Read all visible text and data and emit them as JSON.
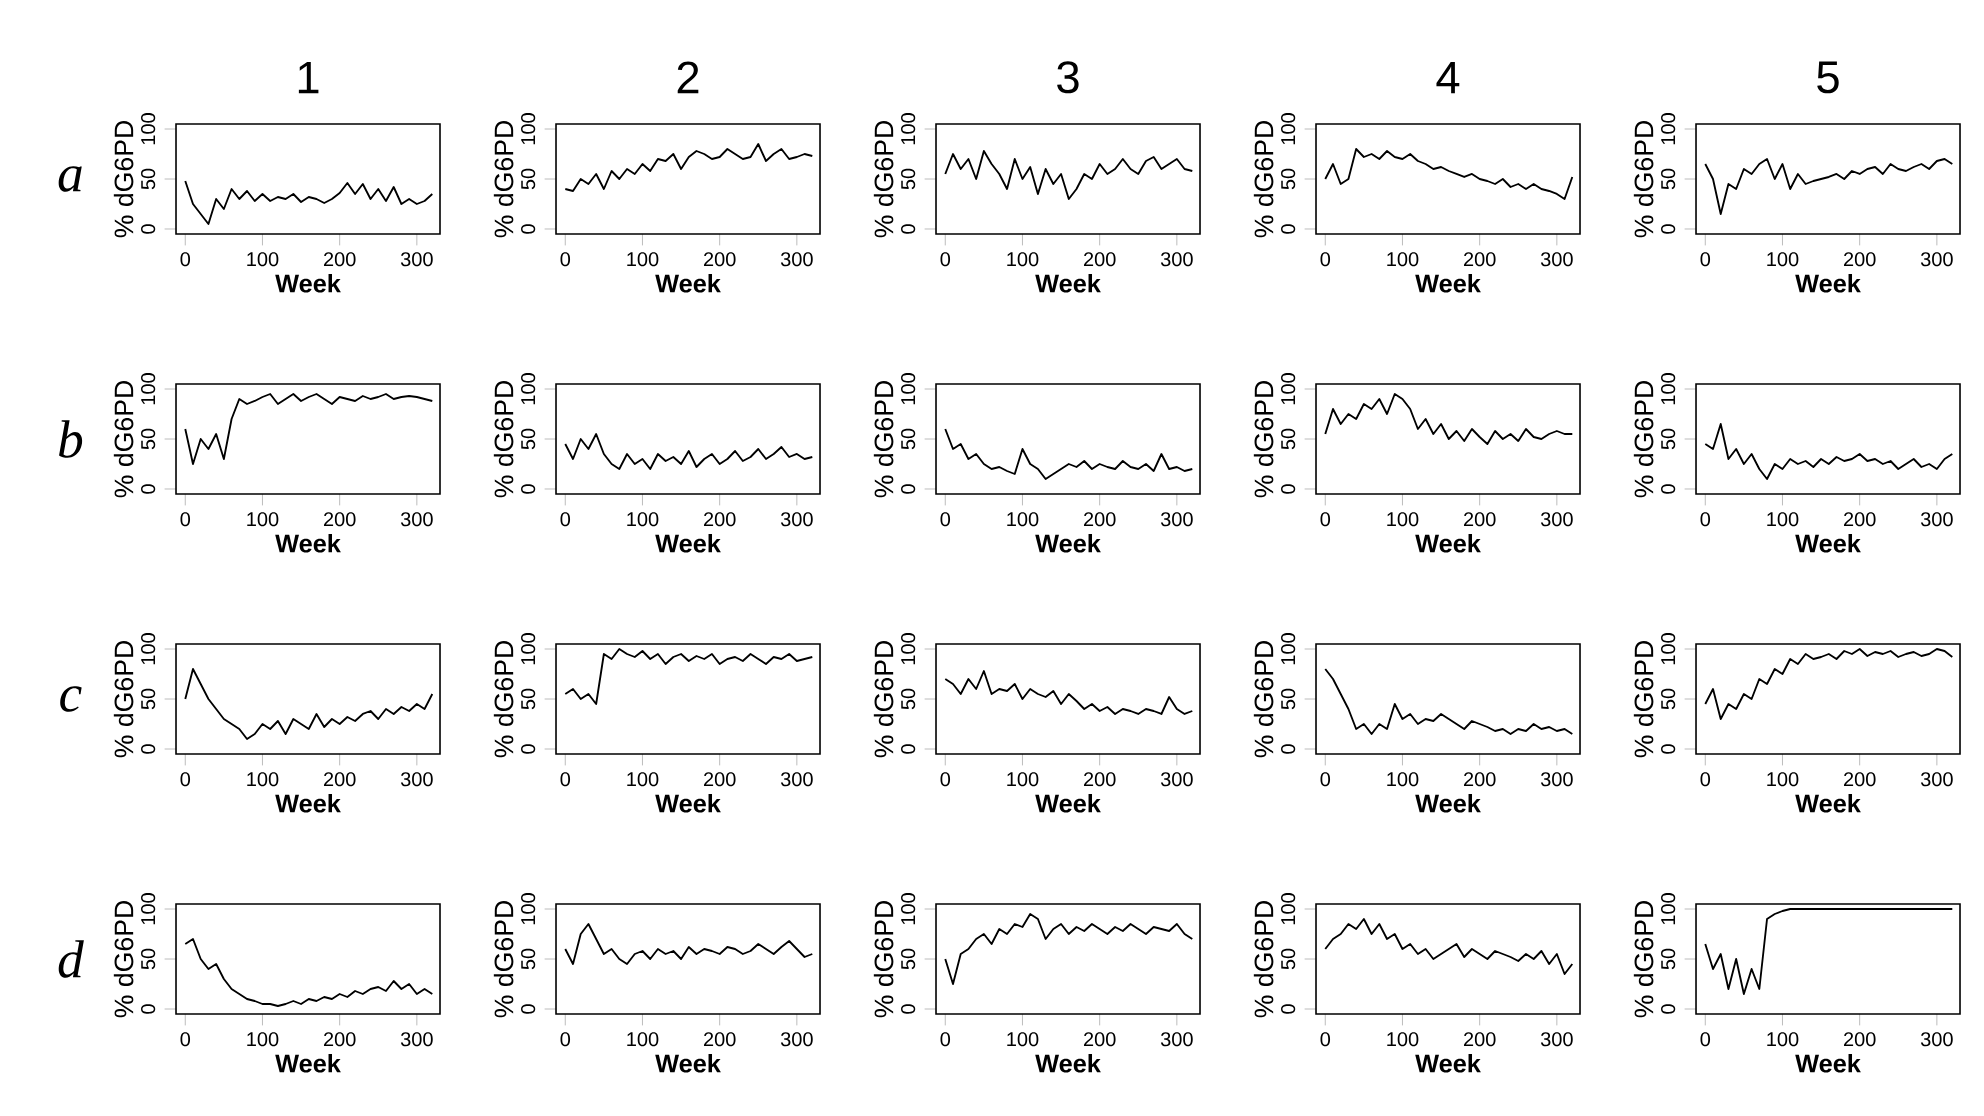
{
  "chart_data": [
    {
      "type": "line",
      "title": "1",
      "annotations": [
        "a"
      ],
      "xlabel": "Week",
      "ylabel": "% dG6PD",
      "xlim": [
        -12,
        330
      ],
      "ylim": [
        -5,
        105
      ],
      "xticks": [
        0,
        100,
        200,
        300
      ],
      "yticks": [
        0,
        50,
        100
      ],
      "color": "#000000",
      "x": [
        0,
        10,
        20,
        30,
        40,
        50,
        60,
        70,
        80,
        90,
        100,
        110,
        120,
        130,
        140,
        150,
        160,
        170,
        180,
        190,
        200,
        210,
        220,
        230,
        240,
        250,
        260,
        270,
        280,
        290,
        300,
        310,
        320
      ],
      "values": [
        48,
        25,
        15,
        5,
        30,
        20,
        40,
        30,
        38,
        28,
        35,
        28,
        32,
        30,
        35,
        27,
        32,
        30,
        26,
        30,
        36,
        46,
        35,
        45,
        30,
        40,
        28,
        42,
        25,
        30,
        25,
        28,
        35
      ]
    },
    {
      "type": "line",
      "title": "2",
      "xlabel": "Week",
      "ylabel": "% dG6PD",
      "xlim": [
        -12,
        330
      ],
      "ylim": [
        -5,
        105
      ],
      "xticks": [
        0,
        100,
        200,
        300
      ],
      "yticks": [
        0,
        50,
        100
      ],
      "color": "#000000",
      "x": [
        0,
        10,
        20,
        30,
        40,
        50,
        60,
        70,
        80,
        90,
        100,
        110,
        120,
        130,
        140,
        150,
        160,
        170,
        180,
        190,
        200,
        210,
        220,
        230,
        240,
        250,
        260,
        270,
        280,
        290,
        300,
        310,
        320
      ],
      "values": [
        40,
        38,
        50,
        45,
        55,
        40,
        58,
        50,
        60,
        55,
        65,
        58,
        70,
        68,
        75,
        60,
        72,
        78,
        75,
        70,
        72,
        80,
        75,
        70,
        72,
        85,
        68,
        75,
        80,
        70,
        72,
        75,
        73
      ]
    },
    {
      "type": "line",
      "title": "3",
      "xlabel": "Week",
      "ylabel": "% dG6PD",
      "xlim": [
        -12,
        330
      ],
      "ylim": [
        -5,
        105
      ],
      "xticks": [
        0,
        100,
        200,
        300
      ],
      "yticks": [
        0,
        50,
        100
      ],
      "color": "#000000",
      "x": [
        0,
        10,
        20,
        30,
        40,
        50,
        60,
        70,
        80,
        90,
        100,
        110,
        120,
        130,
        140,
        150,
        160,
        170,
        180,
        190,
        200,
        210,
        220,
        230,
        240,
        250,
        260,
        270,
        280,
        290,
        300,
        310,
        320
      ],
      "values": [
        55,
        75,
        60,
        70,
        50,
        78,
        65,
        55,
        40,
        70,
        50,
        62,
        35,
        60,
        45,
        55,
        30,
        40,
        55,
        50,
        65,
        55,
        60,
        70,
        60,
        55,
        68,
        72,
        60,
        65,
        70,
        60,
        58
      ]
    },
    {
      "type": "line",
      "title": "4",
      "xlabel": "Week",
      "ylabel": "% dG6PD",
      "xlim": [
        -12,
        330
      ],
      "ylim": [
        -5,
        105
      ],
      "xticks": [
        0,
        100,
        200,
        300
      ],
      "yticks": [
        0,
        50,
        100
      ],
      "color": "#000000",
      "x": [
        0,
        10,
        20,
        30,
        40,
        50,
        60,
        70,
        80,
        90,
        100,
        110,
        120,
        130,
        140,
        150,
        160,
        170,
        180,
        190,
        200,
        210,
        220,
        230,
        240,
        250,
        260,
        270,
        280,
        290,
        300,
        310,
        320
      ],
      "values": [
        50,
        65,
        45,
        50,
        80,
        72,
        75,
        70,
        78,
        72,
        70,
        75,
        68,
        65,
        60,
        62,
        58,
        55,
        52,
        55,
        50,
        48,
        45,
        50,
        42,
        45,
        40,
        45,
        40,
        38,
        35,
        30,
        52
      ]
    },
    {
      "type": "line",
      "title": "5",
      "xlabel": "Week",
      "ylabel": "% dG6PD",
      "xlim": [
        -12,
        330
      ],
      "ylim": [
        -5,
        105
      ],
      "xticks": [
        0,
        100,
        200,
        300
      ],
      "yticks": [
        0,
        50,
        100
      ],
      "color": "#000000",
      "x": [
        0,
        10,
        20,
        30,
        40,
        50,
        60,
        70,
        80,
        90,
        100,
        110,
        120,
        130,
        140,
        150,
        160,
        170,
        180,
        190,
        200,
        210,
        220,
        230,
        240,
        250,
        260,
        270,
        280,
        290,
        300,
        310,
        320
      ],
      "values": [
        65,
        50,
        15,
        45,
        40,
        60,
        55,
        65,
        70,
        50,
        65,
        40,
        55,
        45,
        48,
        50,
        52,
        55,
        50,
        58,
        55,
        60,
        62,
        55,
        65,
        60,
        58,
        62,
        65,
        60,
        68,
        70,
        65
      ]
    },
    {
      "type": "line",
      "annotations": [
        "b"
      ],
      "xlabel": "Week",
      "ylabel": "% dG6PD",
      "xlim": [
        -12,
        330
      ],
      "ylim": [
        -5,
        105
      ],
      "xticks": [
        0,
        100,
        200,
        300
      ],
      "yticks": [
        0,
        50,
        100
      ],
      "color": "#000000",
      "x": [
        0,
        10,
        20,
        30,
        40,
        50,
        60,
        70,
        80,
        90,
        100,
        110,
        120,
        130,
        140,
        150,
        160,
        170,
        180,
        190,
        200,
        210,
        220,
        230,
        240,
        250,
        260,
        270,
        280,
        290,
        300,
        310,
        320
      ],
      "values": [
        60,
        25,
        50,
        40,
        55,
        30,
        70,
        90,
        85,
        88,
        92,
        95,
        85,
        90,
        95,
        88,
        92,
        95,
        90,
        85,
        92,
        90,
        88,
        93,
        90,
        92,
        95,
        90,
        92,
        93,
        92,
        90,
        88
      ]
    },
    {
      "type": "line",
      "xlabel": "Week",
      "ylabel": "% dG6PD",
      "xlim": [
        -12,
        330
      ],
      "ylim": [
        -5,
        105
      ],
      "xticks": [
        0,
        100,
        200,
        300
      ],
      "yticks": [
        0,
        50,
        100
      ],
      "color": "#000000",
      "x": [
        0,
        10,
        20,
        30,
        40,
        50,
        60,
        70,
        80,
        90,
        100,
        110,
        120,
        130,
        140,
        150,
        160,
        170,
        180,
        190,
        200,
        210,
        220,
        230,
        240,
        250,
        260,
        270,
        280,
        290,
        300,
        310,
        320
      ],
      "values": [
        45,
        30,
        50,
        40,
        55,
        35,
        25,
        20,
        35,
        25,
        30,
        20,
        35,
        28,
        32,
        25,
        38,
        22,
        30,
        35,
        25,
        30,
        38,
        28,
        32,
        40,
        30,
        35,
        42,
        32,
        35,
        30,
        32
      ]
    },
    {
      "type": "line",
      "xlabel": "Week",
      "ylabel": "% dG6PD",
      "xlim": [
        -12,
        330
      ],
      "ylim": [
        -5,
        105
      ],
      "xticks": [
        0,
        100,
        200,
        300
      ],
      "yticks": [
        0,
        50,
        100
      ],
      "color": "#000000",
      "x": [
        0,
        10,
        20,
        30,
        40,
        50,
        60,
        70,
        80,
        90,
        100,
        110,
        120,
        130,
        140,
        150,
        160,
        170,
        180,
        190,
        200,
        210,
        220,
        230,
        240,
        250,
        260,
        270,
        280,
        290,
        300,
        310,
        320
      ],
      "values": [
        60,
        40,
        45,
        30,
        35,
        25,
        20,
        22,
        18,
        15,
        40,
        25,
        20,
        10,
        15,
        20,
        25,
        22,
        28,
        20,
        25,
        22,
        20,
        28,
        22,
        20,
        25,
        18,
        35,
        20,
        22,
        18,
        20
      ]
    },
    {
      "type": "line",
      "xlabel": "Week",
      "ylabel": "% dG6PD",
      "xlim": [
        -12,
        330
      ],
      "ylim": [
        -5,
        105
      ],
      "xticks": [
        0,
        100,
        200,
        300
      ],
      "yticks": [
        0,
        50,
        100
      ],
      "color": "#000000",
      "x": [
        0,
        10,
        20,
        30,
        40,
        50,
        60,
        70,
        80,
        90,
        100,
        110,
        120,
        130,
        140,
        150,
        160,
        170,
        180,
        190,
        200,
        210,
        220,
        230,
        240,
        250,
        260,
        270,
        280,
        290,
        300,
        310,
        320
      ],
      "values": [
        55,
        80,
        65,
        75,
        70,
        85,
        80,
        90,
        75,
        95,
        90,
        80,
        60,
        70,
        55,
        65,
        50,
        58,
        48,
        60,
        52,
        45,
        58,
        50,
        55,
        48,
        60,
        52,
        50,
        55,
        58,
        55,
        55
      ]
    },
    {
      "type": "line",
      "xlabel": "Week",
      "ylabel": "% dG6PD",
      "xlim": [
        -12,
        330
      ],
      "ylim": [
        -5,
        105
      ],
      "xticks": [
        0,
        100,
        200,
        300
      ],
      "yticks": [
        0,
        50,
        100
      ],
      "color": "#000000",
      "x": [
        0,
        10,
        20,
        30,
        40,
        50,
        60,
        70,
        80,
        90,
        100,
        110,
        120,
        130,
        140,
        150,
        160,
        170,
        180,
        190,
        200,
        210,
        220,
        230,
        240,
        250,
        260,
        270,
        280,
        290,
        300,
        310,
        320
      ],
      "values": [
        45,
        40,
        65,
        30,
        40,
        25,
        35,
        20,
        10,
        25,
        20,
        30,
        25,
        28,
        22,
        30,
        25,
        32,
        28,
        30,
        35,
        28,
        30,
        25,
        28,
        20,
        25,
        30,
        22,
        25,
        20,
        30,
        35
      ]
    },
    {
      "type": "line",
      "annotations": [
        "c"
      ],
      "xlabel": "Week",
      "ylabel": "% dG6PD",
      "xlim": [
        -12,
        330
      ],
      "ylim": [
        -5,
        105
      ],
      "xticks": [
        0,
        100,
        200,
        300
      ],
      "yticks": [
        0,
        50,
        100
      ],
      "color": "#000000",
      "x": [
        0,
        10,
        20,
        30,
        40,
        50,
        60,
        70,
        80,
        90,
        100,
        110,
        120,
        130,
        140,
        150,
        160,
        170,
        180,
        190,
        200,
        210,
        220,
        230,
        240,
        250,
        260,
        270,
        280,
        290,
        300,
        310,
        320
      ],
      "values": [
        50,
        80,
        65,
        50,
        40,
        30,
        25,
        20,
        10,
        15,
        25,
        20,
        28,
        15,
        30,
        25,
        20,
        35,
        22,
        30,
        25,
        32,
        28,
        35,
        38,
        30,
        40,
        35,
        42,
        38,
        45,
        40,
        55
      ]
    },
    {
      "type": "line",
      "xlabel": "Week",
      "ylabel": "% dG6PD",
      "xlim": [
        -12,
        330
      ],
      "ylim": [
        -5,
        105
      ],
      "xticks": [
        0,
        100,
        200,
        300
      ],
      "yticks": [
        0,
        50,
        100
      ],
      "color": "#000000",
      "x": [
        0,
        10,
        20,
        30,
        40,
        50,
        60,
        70,
        80,
        90,
        100,
        110,
        120,
        130,
        140,
        150,
        160,
        170,
        180,
        190,
        200,
        210,
        220,
        230,
        240,
        250,
        260,
        270,
        280,
        290,
        300,
        310,
        320
      ],
      "values": [
        55,
        60,
        50,
        55,
        45,
        95,
        90,
        100,
        95,
        92,
        98,
        90,
        95,
        85,
        92,
        95,
        88,
        93,
        90,
        95,
        85,
        90,
        92,
        88,
        95,
        90,
        85,
        92,
        90,
        95,
        88,
        90,
        92
      ]
    },
    {
      "type": "line",
      "xlabel": "Week",
      "ylabel": "% dG6PD",
      "xlim": [
        -12,
        330
      ],
      "ylim": [
        -5,
        105
      ],
      "xticks": [
        0,
        100,
        200,
        300
      ],
      "yticks": [
        0,
        50,
        100
      ],
      "color": "#000000",
      "x": [
        0,
        10,
        20,
        30,
        40,
        50,
        60,
        70,
        80,
        90,
        100,
        110,
        120,
        130,
        140,
        150,
        160,
        170,
        180,
        190,
        200,
        210,
        220,
        230,
        240,
        250,
        260,
        270,
        280,
        290,
        300,
        310,
        320
      ],
      "values": [
        70,
        65,
        55,
        70,
        60,
        78,
        55,
        60,
        58,
        65,
        50,
        60,
        55,
        52,
        58,
        45,
        55,
        48,
        40,
        45,
        38,
        42,
        35,
        40,
        38,
        35,
        40,
        38,
        35,
        52,
        40,
        35,
        38
      ]
    },
    {
      "type": "line",
      "xlabel": "Week",
      "ylabel": "% dG6PD",
      "xlim": [
        -12,
        330
      ],
      "ylim": [
        -5,
        105
      ],
      "xticks": [
        0,
        100,
        200,
        300
      ],
      "yticks": [
        0,
        50,
        100
      ],
      "color": "#000000",
      "x": [
        0,
        10,
        20,
        30,
        40,
        50,
        60,
        70,
        80,
        90,
        100,
        110,
        120,
        130,
        140,
        150,
        160,
        170,
        180,
        190,
        200,
        210,
        220,
        230,
        240,
        250,
        260,
        270,
        280,
        290,
        300,
        310,
        320
      ],
      "values": [
        80,
        70,
        55,
        40,
        20,
        25,
        15,
        25,
        20,
        45,
        30,
        35,
        25,
        30,
        28,
        35,
        30,
        25,
        20,
        28,
        25,
        22,
        18,
        20,
        15,
        20,
        18,
        25,
        20,
        22,
        18,
        20,
        15
      ]
    },
    {
      "type": "line",
      "xlabel": "Week",
      "ylabel": "% dG6PD",
      "xlim": [
        -12,
        330
      ],
      "ylim": [
        -5,
        105
      ],
      "xticks": [
        0,
        100,
        200,
        300
      ],
      "yticks": [
        0,
        50,
        100
      ],
      "color": "#000000",
      "x": [
        0,
        10,
        20,
        30,
        40,
        50,
        60,
        70,
        80,
        90,
        100,
        110,
        120,
        130,
        140,
        150,
        160,
        170,
        180,
        190,
        200,
        210,
        220,
        230,
        240,
        250,
        260,
        270,
        280,
        290,
        300,
        310,
        320
      ],
      "values": [
        45,
        60,
        30,
        45,
        40,
        55,
        50,
        70,
        65,
        80,
        75,
        90,
        85,
        95,
        90,
        92,
        95,
        90,
        98,
        95,
        100,
        93,
        97,
        95,
        98,
        92,
        95,
        97,
        93,
        95,
        100,
        98,
        92
      ]
    },
    {
      "type": "line",
      "annotations": [
        "d"
      ],
      "xlabel": "Week",
      "ylabel": "% dG6PD",
      "xlim": [
        -12,
        330
      ],
      "ylim": [
        -5,
        105
      ],
      "xticks": [
        0,
        100,
        200,
        300
      ],
      "yticks": [
        0,
        50,
        100
      ],
      "color": "#000000",
      "x": [
        0,
        10,
        20,
        30,
        40,
        50,
        60,
        70,
        80,
        90,
        100,
        110,
        120,
        130,
        140,
        150,
        160,
        170,
        180,
        190,
        200,
        210,
        220,
        230,
        240,
        250,
        260,
        270,
        280,
        290,
        300,
        310,
        320
      ],
      "values": [
        65,
        70,
        50,
        40,
        45,
        30,
        20,
        15,
        10,
        8,
        5,
        5,
        3,
        5,
        8,
        5,
        10,
        8,
        12,
        10,
        15,
        12,
        18,
        15,
        20,
        22,
        18,
        28,
        20,
        25,
        15,
        20,
        15
      ]
    },
    {
      "type": "line",
      "xlabel": "Week",
      "ylabel": "% dG6PD",
      "xlim": [
        -12,
        330
      ],
      "ylim": [
        -5,
        105
      ],
      "xticks": [
        0,
        100,
        200,
        300
      ],
      "yticks": [
        0,
        50,
        100
      ],
      "color": "#000000",
      "x": [
        0,
        10,
        20,
        30,
        40,
        50,
        60,
        70,
        80,
        90,
        100,
        110,
        120,
        130,
        140,
        150,
        160,
        170,
        180,
        190,
        200,
        210,
        220,
        230,
        240,
        250,
        260,
        270,
        280,
        290,
        300,
        310,
        320
      ],
      "values": [
        60,
        45,
        75,
        85,
        70,
        55,
        60,
        50,
        45,
        55,
        58,
        50,
        60,
        55,
        58,
        50,
        62,
        55,
        60,
        58,
        55,
        62,
        60,
        55,
        58,
        65,
        60,
        55,
        62,
        68,
        60,
        52,
        55
      ]
    },
    {
      "type": "line",
      "xlabel": "Week",
      "ylabel": "% dG6PD",
      "xlim": [
        -12,
        330
      ],
      "ylim": [
        -5,
        105
      ],
      "xticks": [
        0,
        100,
        200,
        300
      ],
      "yticks": [
        0,
        50,
        100
      ],
      "color": "#000000",
      "x": [
        0,
        10,
        20,
        30,
        40,
        50,
        60,
        70,
        80,
        90,
        100,
        110,
        120,
        130,
        140,
        150,
        160,
        170,
        180,
        190,
        200,
        210,
        220,
        230,
        240,
        250,
        260,
        270,
        280,
        290,
        300,
        310,
        320
      ],
      "values": [
        50,
        25,
        55,
        60,
        70,
        75,
        65,
        80,
        75,
        85,
        82,
        95,
        90,
        70,
        80,
        85,
        75,
        82,
        78,
        85,
        80,
        75,
        82,
        78,
        85,
        80,
        75,
        82,
        80,
        78,
        85,
        75,
        70
      ]
    },
    {
      "type": "line",
      "xlabel": "Week",
      "ylabel": "% dG6PD",
      "xlim": [
        -12,
        330
      ],
      "ylim": [
        -5,
        105
      ],
      "xticks": [
        0,
        100,
        200,
        300
      ],
      "yticks": [
        0,
        50,
        100
      ],
      "color": "#000000",
      "x": [
        0,
        10,
        20,
        30,
        40,
        50,
        60,
        70,
        80,
        90,
        100,
        110,
        120,
        130,
        140,
        150,
        160,
        170,
        180,
        190,
        200,
        210,
        220,
        230,
        240,
        250,
        260,
        270,
        280,
        290,
        300,
        310,
        320
      ],
      "values": [
        60,
        70,
        75,
        85,
        80,
        90,
        75,
        85,
        70,
        75,
        60,
        65,
        55,
        60,
        50,
        55,
        60,
        65,
        52,
        60,
        55,
        50,
        58,
        55,
        52,
        48,
        55,
        50,
        58,
        45,
        55,
        35,
        45
      ]
    },
    {
      "type": "line",
      "xlabel": "Week",
      "ylabel": "% dG6PD",
      "xlim": [
        -12,
        330
      ],
      "ylim": [
        -5,
        105
      ],
      "xticks": [
        0,
        100,
        200,
        300
      ],
      "yticks": [
        0,
        50,
        100
      ],
      "color": "#000000",
      "x": [
        0,
        10,
        20,
        30,
        40,
        50,
        60,
        70,
        80,
        90,
        100,
        110,
        120,
        130,
        140,
        150,
        160,
        170,
        180,
        190,
        200,
        210,
        220,
        230,
        240,
        250,
        260,
        270,
        280,
        290,
        300,
        310,
        320
      ],
      "values": [
        65,
        40,
        55,
        20,
        50,
        15,
        40,
        20,
        90,
        95,
        98,
        100,
        100,
        100,
        100,
        100,
        100,
        100,
        100,
        100,
        100,
        100,
        100,
        100,
        100,
        100,
        100,
        100,
        100,
        100,
        100,
        100,
        100
      ]
    }
  ]
}
